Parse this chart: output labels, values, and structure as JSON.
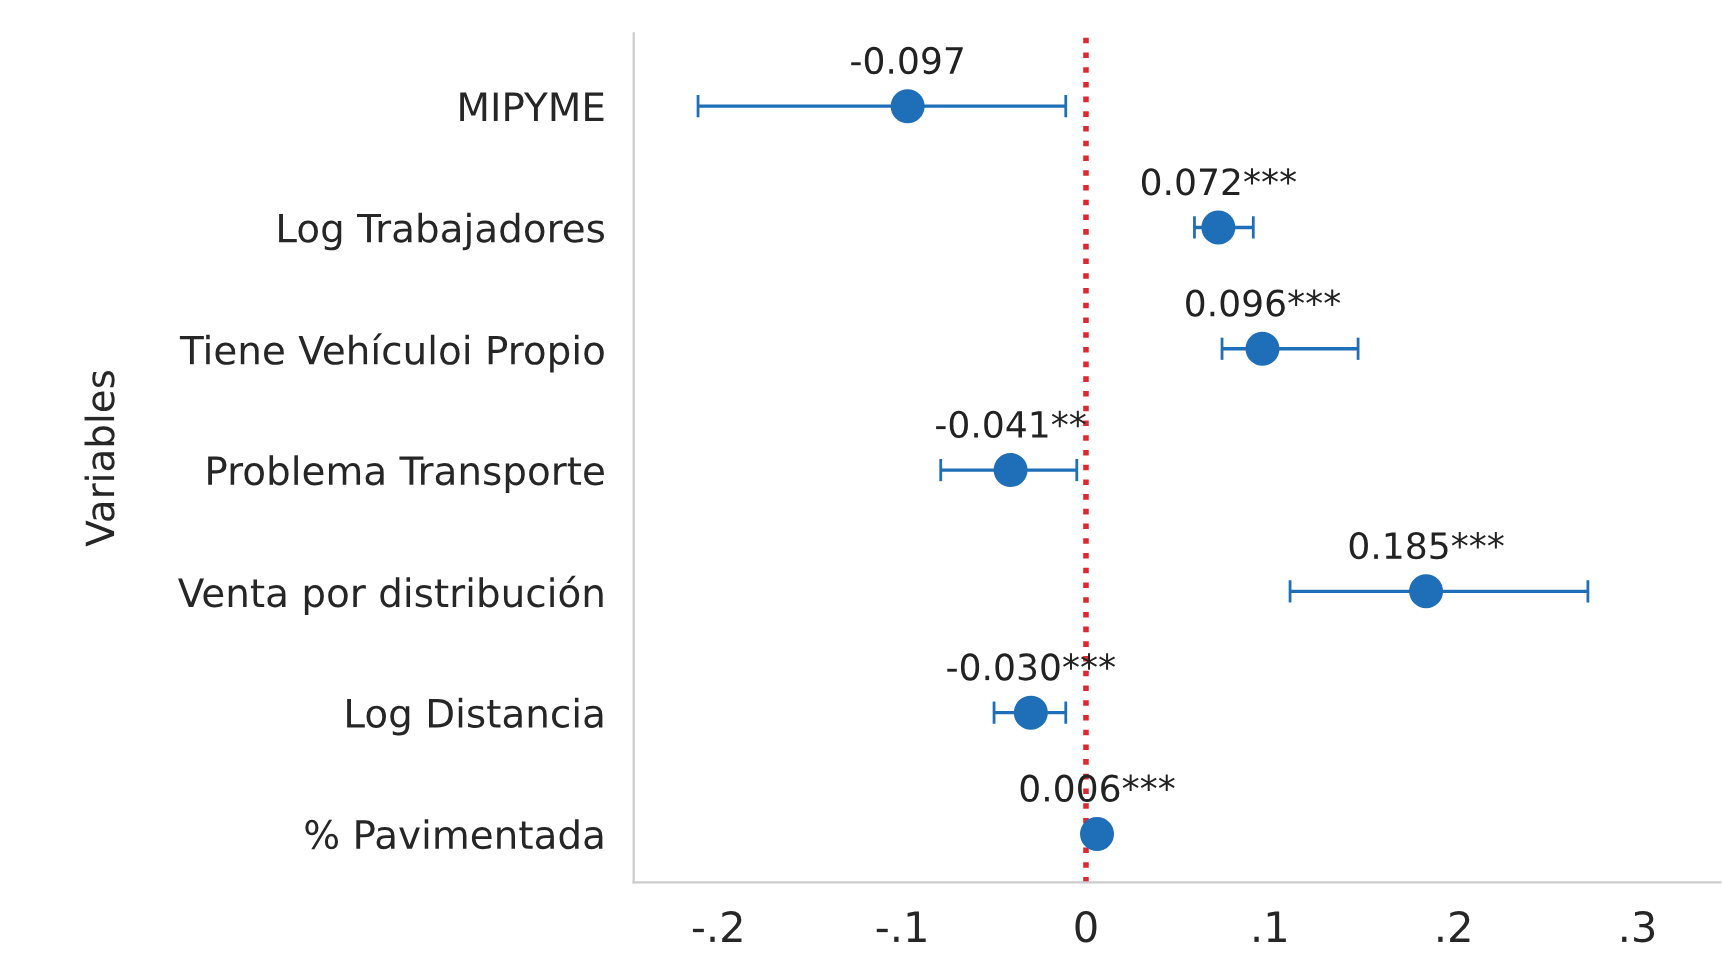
{
  "chart_data": {
    "type": "scatter",
    "orientation": "horizontal",
    "ylabel": "Variables",
    "categories": [
      "MIPYME",
      "Log Trabajadores",
      "Tiene Vehículoi Propio",
      "Problema Transporte",
      "Venta por distribución",
      "Log Distancia",
      "% Pavimentada"
    ],
    "values": [
      -0.097,
      0.072,
      0.096,
      -0.041,
      0.185,
      -0.03,
      0.006
    ],
    "value_labels": [
      "-0.097",
      "0.072***",
      "0.096***",
      "-0.041**",
      "0.185***",
      "-0.030***",
      "0.006***"
    ],
    "errors": [
      [
        -0.211,
        -0.011
      ],
      [
        0.059,
        0.091
      ],
      [
        0.074,
        0.148
      ],
      [
        -0.079,
        -0.005
      ],
      [
        0.111,
        0.273
      ],
      [
        -0.05,
        -0.011
      ],
      null
    ],
    "color": "#1f6fb8",
    "marker": "circle",
    "xlim": [
      -0.246,
      0.345
    ],
    "xticks": [
      {
        "value": -0.2,
        "label": "-.2"
      },
      {
        "value": -0.1,
        "label": "-.1"
      },
      0,
      {
        "value": 0.1,
        "label": ".1"
      },
      {
        "value": 0.2,
        "label": ".2"
      },
      {
        "value": 0.3,
        "label": ".3"
      }
    ],
    "ref_lines": [
      {
        "axis": "x",
        "value": 0,
        "label": null,
        "color": "#e3262b",
        "line_style": "dotted"
      }
    ],
    "grid": false,
    "legend": false
  }
}
